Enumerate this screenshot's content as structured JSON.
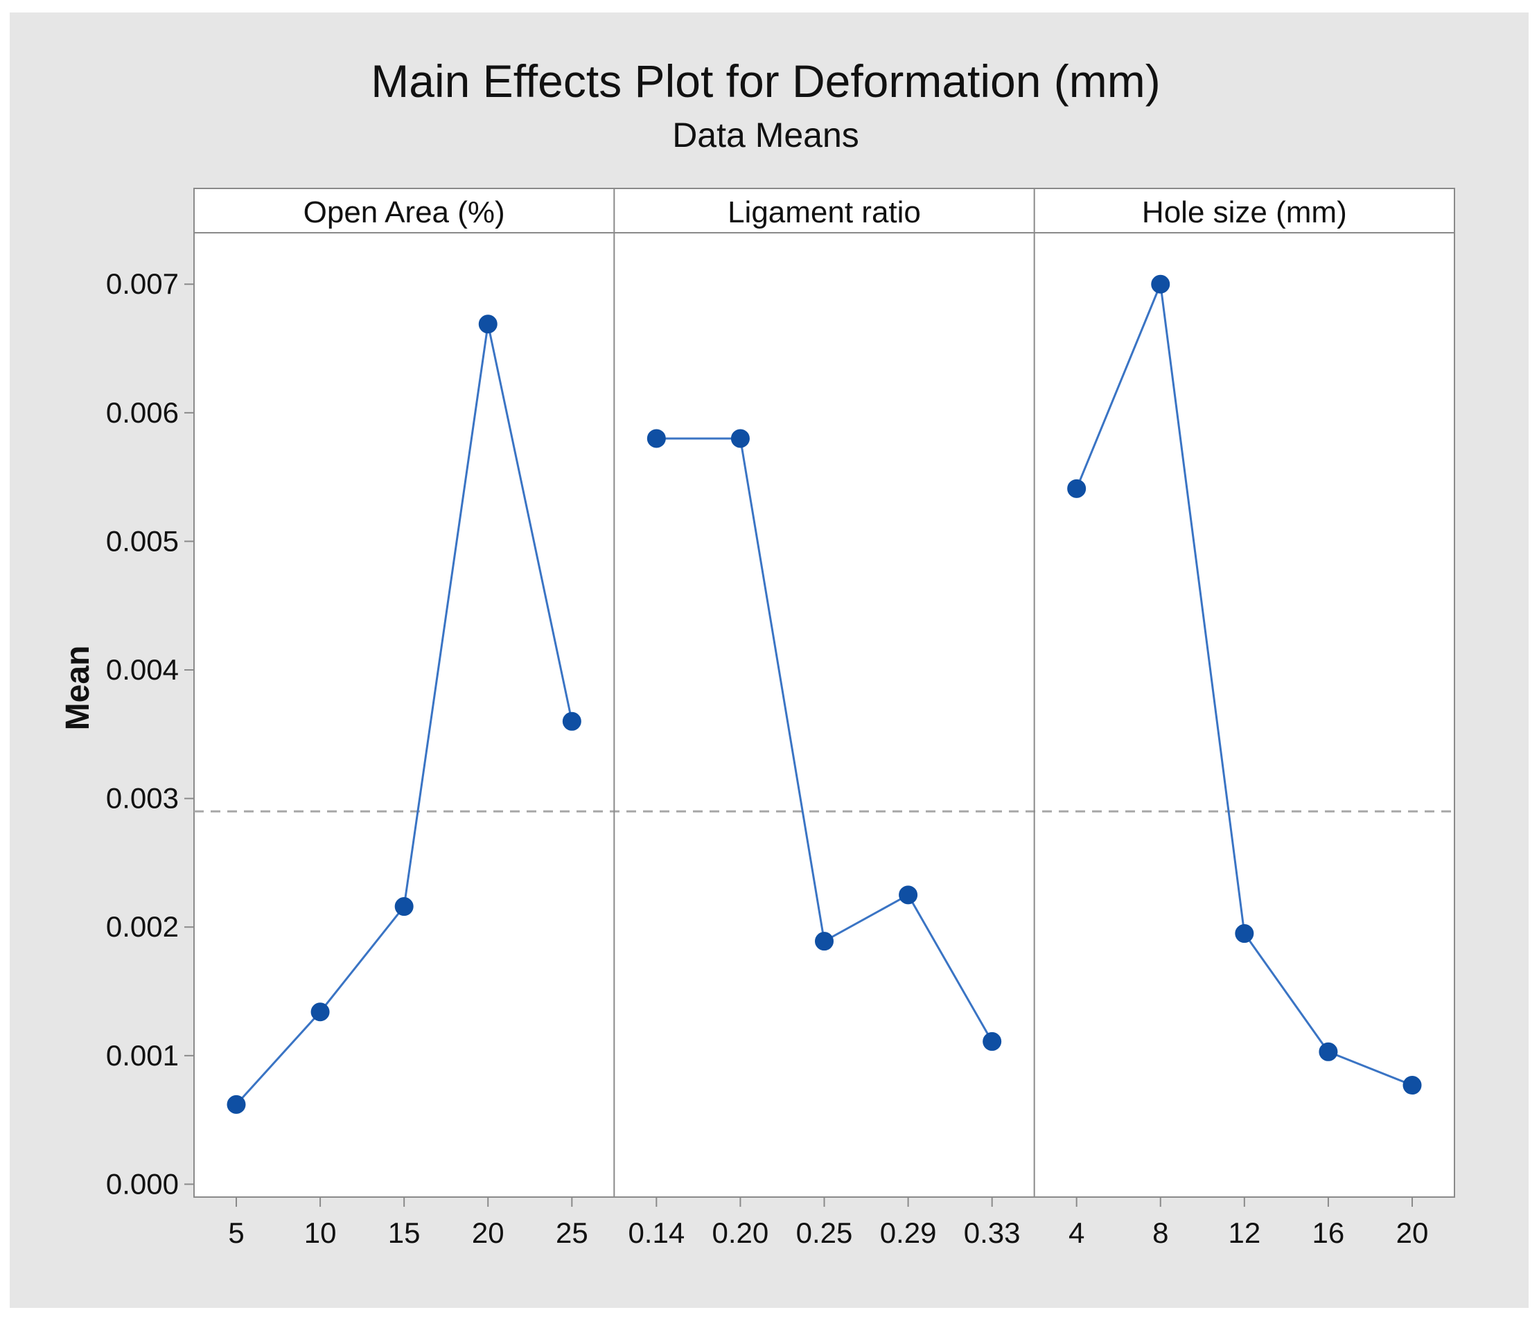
{
  "chart_data": {
    "type": "line",
    "title": "Main Effects Plot for Deformation (mm)",
    "subtitle": "Data Means",
    "ylabel": "Mean",
    "ylim": [
      -0.0001,
      0.0074
    ],
    "yticks": [
      0.0,
      0.001,
      0.002,
      0.003,
      0.004,
      0.005,
      0.006,
      0.007
    ],
    "ytick_labels": [
      "0.000",
      "0.001",
      "0.002",
      "0.003",
      "0.004",
      "0.005",
      "0.006",
      "0.007"
    ],
    "reference_line": 0.0029,
    "grid": false,
    "colors": {
      "outer_background": "#e6e6e6",
      "plot_background": "#ffffff",
      "series": "#3a74c4",
      "marker": "#0f4fa3",
      "reference": "#a8a8a8",
      "frame": "#8a8a8a"
    },
    "panels": [
      {
        "name": "Open Area (%)",
        "categories": [
          "5",
          "10",
          "15",
          "20",
          "25"
        ],
        "values": [
          0.00062,
          0.00134,
          0.00216,
          0.00669,
          0.0036
        ]
      },
      {
        "name": "Ligament ratio",
        "categories": [
          "0.14",
          "0.20",
          "0.25",
          "0.29",
          "0.33"
        ],
        "values": [
          0.0058,
          0.0058,
          0.00189,
          0.00225,
          0.00111
        ]
      },
      {
        "name": "Hole size (mm)",
        "categories": [
          "4",
          "8",
          "12",
          "16",
          "20"
        ],
        "values": [
          0.00541,
          0.007,
          0.00195,
          0.00103,
          0.00077
        ]
      }
    ]
  }
}
